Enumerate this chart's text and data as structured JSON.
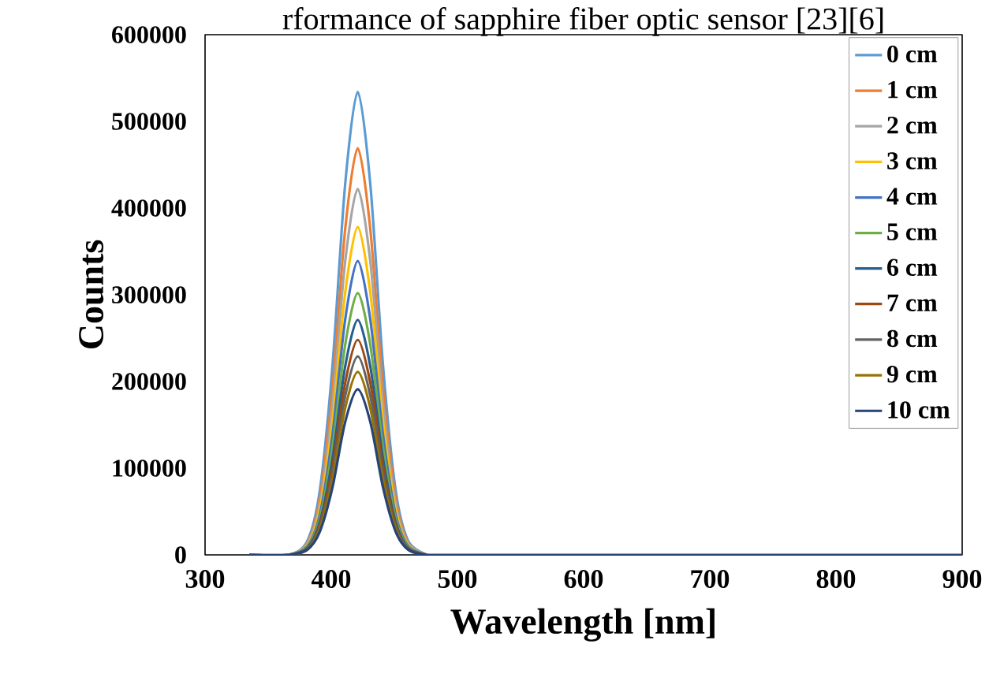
{
  "chart_data": {
    "type": "line",
    "title": "rformance of sapphire fiber optic sensor [23][6]",
    "xlabel": "Wavelength [nm]",
    "ylabel": "Counts",
    "xlim": [
      300,
      900
    ],
    "xticks": [
      300,
      400,
      500,
      600,
      700,
      800,
      900
    ],
    "ylim": [
      0,
      600000
    ],
    "yticks": [
      0,
      100000,
      200000,
      300000,
      400000,
      500000,
      600000
    ],
    "legend": "top right",
    "line_style": "solid",
    "x": [
      335,
      366,
      381,
      391,
      401,
      411,
      421,
      431,
      441,
      451,
      461,
      476,
      500,
      900
    ],
    "series": [
      {
        "name": "0 cm",
        "color": "#5b9bd5",
        "values": [
          0,
          0,
          16000,
          75000,
          219000,
          427000,
          534000,
          427000,
          219000,
          75000,
          16000,
          0,
          null,
          null
        ]
      },
      {
        "name": "1 cm",
        "color": "#ed7d31",
        "values": [
          0,
          0,
          14000,
          66000,
          192000,
          375000,
          469000,
          375000,
          192000,
          66000,
          14000,
          0,
          null,
          null
        ]
      },
      {
        "name": "2 cm",
        "color": "#a5a5a5",
        "values": [
          0,
          0,
          13000,
          59000,
          173000,
          338000,
          422000,
          338000,
          173000,
          59000,
          13000,
          0,
          null,
          null
        ]
      },
      {
        "name": "3 cm",
        "color": "#ffc000",
        "values": [
          0,
          0,
          11000,
          53000,
          155000,
          302000,
          378000,
          302000,
          155000,
          53000,
          11000,
          0,
          null,
          null
        ]
      },
      {
        "name": "4 cm",
        "color": "#4472c4",
        "values": [
          0,
          0,
          10000,
          47000,
          139000,
          271000,
          339000,
          271000,
          139000,
          47000,
          10000,
          0,
          null,
          null
        ]
      },
      {
        "name": "5 cm",
        "color": "#70ad47",
        "values": [
          0,
          0,
          9000,
          42000,
          124000,
          242000,
          302000,
          242000,
          124000,
          42000,
          9000,
          0,
          null,
          null
        ]
      },
      {
        "name": "6 cm",
        "color": "#255e91",
        "values": [
          0,
          0,
          8000,
          38000,
          111000,
          217000,
          271000,
          217000,
          111000,
          38000,
          8000,
          0,
          null,
          null
        ]
      },
      {
        "name": "7 cm",
        "color": "#9e480e",
        "values": [
          0,
          0,
          7000,
          35000,
          102000,
          198000,
          248000,
          198000,
          102000,
          35000,
          7000,
          0,
          null,
          null
        ]
      },
      {
        "name": "8 cm",
        "color": "#636363",
        "values": [
          0,
          0,
          7000,
          32000,
          94000,
          183000,
          229000,
          183000,
          94000,
          32000,
          7000,
          0,
          null,
          null
        ]
      },
      {
        "name": "9 cm",
        "color": "#997300",
        "values": [
          0,
          0,
          6000,
          30000,
          87000,
          169000,
          211000,
          169000,
          87000,
          30000,
          6000,
          0,
          null,
          null
        ]
      },
      {
        "name": "10 cm",
        "color": "#264478",
        "values": [
          0,
          0,
          6000,
          27000,
          78000,
          153000,
          191000,
          153000,
          78000,
          27000,
          6000,
          0,
          0,
          0
        ]
      }
    ]
  }
}
